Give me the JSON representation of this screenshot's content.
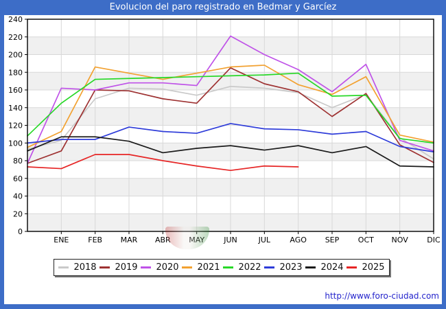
{
  "title": "Evolucion del paro registrado en Bedmar y Garcíez",
  "footer": {
    "url": "http://www.foro-ciudad.com"
  },
  "colors": {
    "frame": "#3d6dc7",
    "title_text": "#ffffff",
    "plot_border": "#000000",
    "grid": "#d8d8d8",
    "band": "#f0f0f0",
    "axis_text": "#000000",
    "link": "#2424cc"
  },
  "chart_data": {
    "type": "line",
    "title": "Evolucion del paro registrado en Bedmar y Garcíez",
    "x_categories": [
      "ENE",
      "FEB",
      "MAR",
      "ABR",
      "MAY",
      "JUN",
      "JUL",
      "AGO",
      "SEP",
      "OCT",
      "NOV",
      "DIC"
    ],
    "y_ticks": [
      0,
      20,
      40,
      60,
      80,
      100,
      120,
      140,
      160,
      180,
      200,
      220,
      240
    ],
    "ylim": [
      0,
      240
    ],
    "grid": true,
    "legend_position": "bottom",
    "layout_note": "each line starts at the left plot edge (previous December) and has one point per month; 2025 ends at AGO",
    "series": [
      {
        "name": "2018",
        "color": "#c9c9c9",
        "start": 93,
        "monthly": [
          103,
          150,
          162,
          161,
          154,
          164,
          162,
          157,
          140,
          155,
          106,
          82
        ]
      },
      {
        "name": "2019",
        "color": "#9e3232",
        "start": 77,
        "monthly": [
          91,
          160,
          159,
          150,
          145,
          185,
          167,
          158,
          130,
          156,
          98,
          78
        ]
      },
      {
        "name": "2020",
        "color": "#bf52e8",
        "start": 77,
        "monthly": [
          162,
          160,
          168,
          168,
          165,
          221,
          200,
          183,
          158,
          189,
          103,
          91
        ]
      },
      {
        "name": "2021",
        "color": "#f2a130",
        "start": 95,
        "monthly": [
          113,
          186,
          179,
          172,
          179,
          186,
          188,
          166,
          155,
          175,
          109,
          101
        ]
      },
      {
        "name": "2022",
        "color": "#27d827",
        "start": 108,
        "monthly": [
          145,
          172,
          173,
          174,
          175,
          176,
          177,
          179,
          153,
          154,
          105,
          100
        ]
      },
      {
        "name": "2023",
        "color": "#2e3cd9",
        "start": 100,
        "monthly": [
          104,
          104,
          118,
          113,
          111,
          122,
          116,
          115,
          110,
          113,
          96,
          90
        ]
      },
      {
        "name": "2024",
        "color": "#1a1a1a",
        "start": 91,
        "monthly": [
          107,
          107,
          102,
          89,
          94,
          97,
          92,
          97,
          89,
          96,
          74,
          73
        ]
      },
      {
        "name": "2025",
        "color": "#e62525",
        "start": 73,
        "monthly": [
          71,
          87,
          87,
          80,
          74,
          69,
          74,
          73
        ]
      }
    ]
  }
}
